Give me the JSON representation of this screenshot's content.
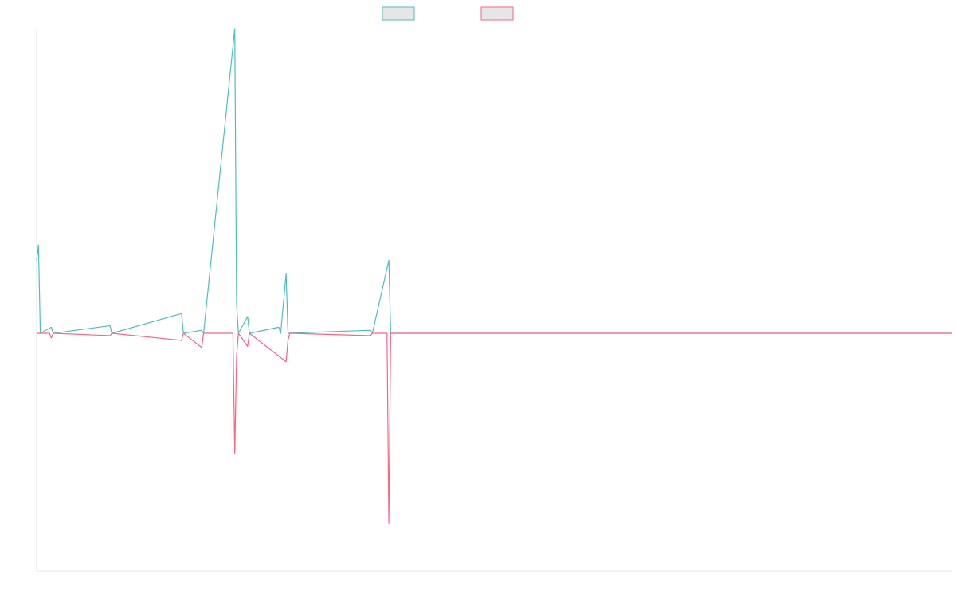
{
  "chart_data": {
    "type": "line",
    "title": "",
    "xlabel": "",
    "ylabel": "",
    "legend_position": "top-center",
    "grid": false,
    "x_count": 500,
    "ylim": [
      -1.0,
      1.0
    ],
    "colors": {
      "series_a": "#4bc0c0",
      "series_b": "#ff6384",
      "legend_fill": "#e6e6e6",
      "axis": "#e6e6e6"
    },
    "series": [
      {
        "color": "#4bc0c0",
        "points": [
          [
            0,
            0.24
          ],
          [
            1,
            0.29
          ],
          [
            2,
            0.0
          ],
          [
            8,
            0.02
          ],
          [
            9,
            0.0
          ],
          [
            40,
            0.025
          ],
          [
            41,
            0.0
          ],
          [
            79,
            0.065
          ],
          [
            80,
            0.0
          ],
          [
            90,
            0.01
          ],
          [
            91,
            0.0
          ],
          [
            108,
            1.0
          ],
          [
            109,
            0.095
          ],
          [
            110,
            0.0
          ],
          [
            115,
            0.055
          ],
          [
            116,
            0.0
          ],
          [
            132,
            0.02
          ],
          [
            133,
            0.0
          ],
          [
            136,
            0.195
          ],
          [
            137,
            0.0
          ],
          [
            182,
            0.01
          ],
          [
            183,
            0.0
          ],
          [
            192,
            0.24
          ],
          [
            193,
            0.0
          ],
          [
            499,
            0.0
          ]
        ]
      },
      {
        "color": "#ff6384",
        "points": [
          [
            0,
            0.0
          ],
          [
            7,
            0.0
          ],
          [
            8,
            -0.02
          ],
          [
            9,
            0.0
          ],
          [
            40,
            -0.01
          ],
          [
            41,
            0.0
          ],
          [
            79,
            -0.03
          ],
          [
            80,
            0.0
          ],
          [
            90,
            -0.06
          ],
          [
            91,
            0.0
          ],
          [
            107,
            0.0
          ],
          [
            108,
            -0.505
          ],
          [
            109,
            -0.095
          ],
          [
            110,
            0.0
          ],
          [
            115,
            -0.055
          ],
          [
            116,
            0.0
          ],
          [
            136,
            -0.12
          ],
          [
            137,
            -0.03
          ],
          [
            138,
            0.0
          ],
          [
            182,
            -0.01
          ],
          [
            183,
            0.0
          ],
          [
            191,
            0.0
          ],
          [
            192,
            -0.8
          ],
          [
            193,
            0.0
          ],
          [
            499,
            0.0
          ]
        ]
      }
    ]
  }
}
